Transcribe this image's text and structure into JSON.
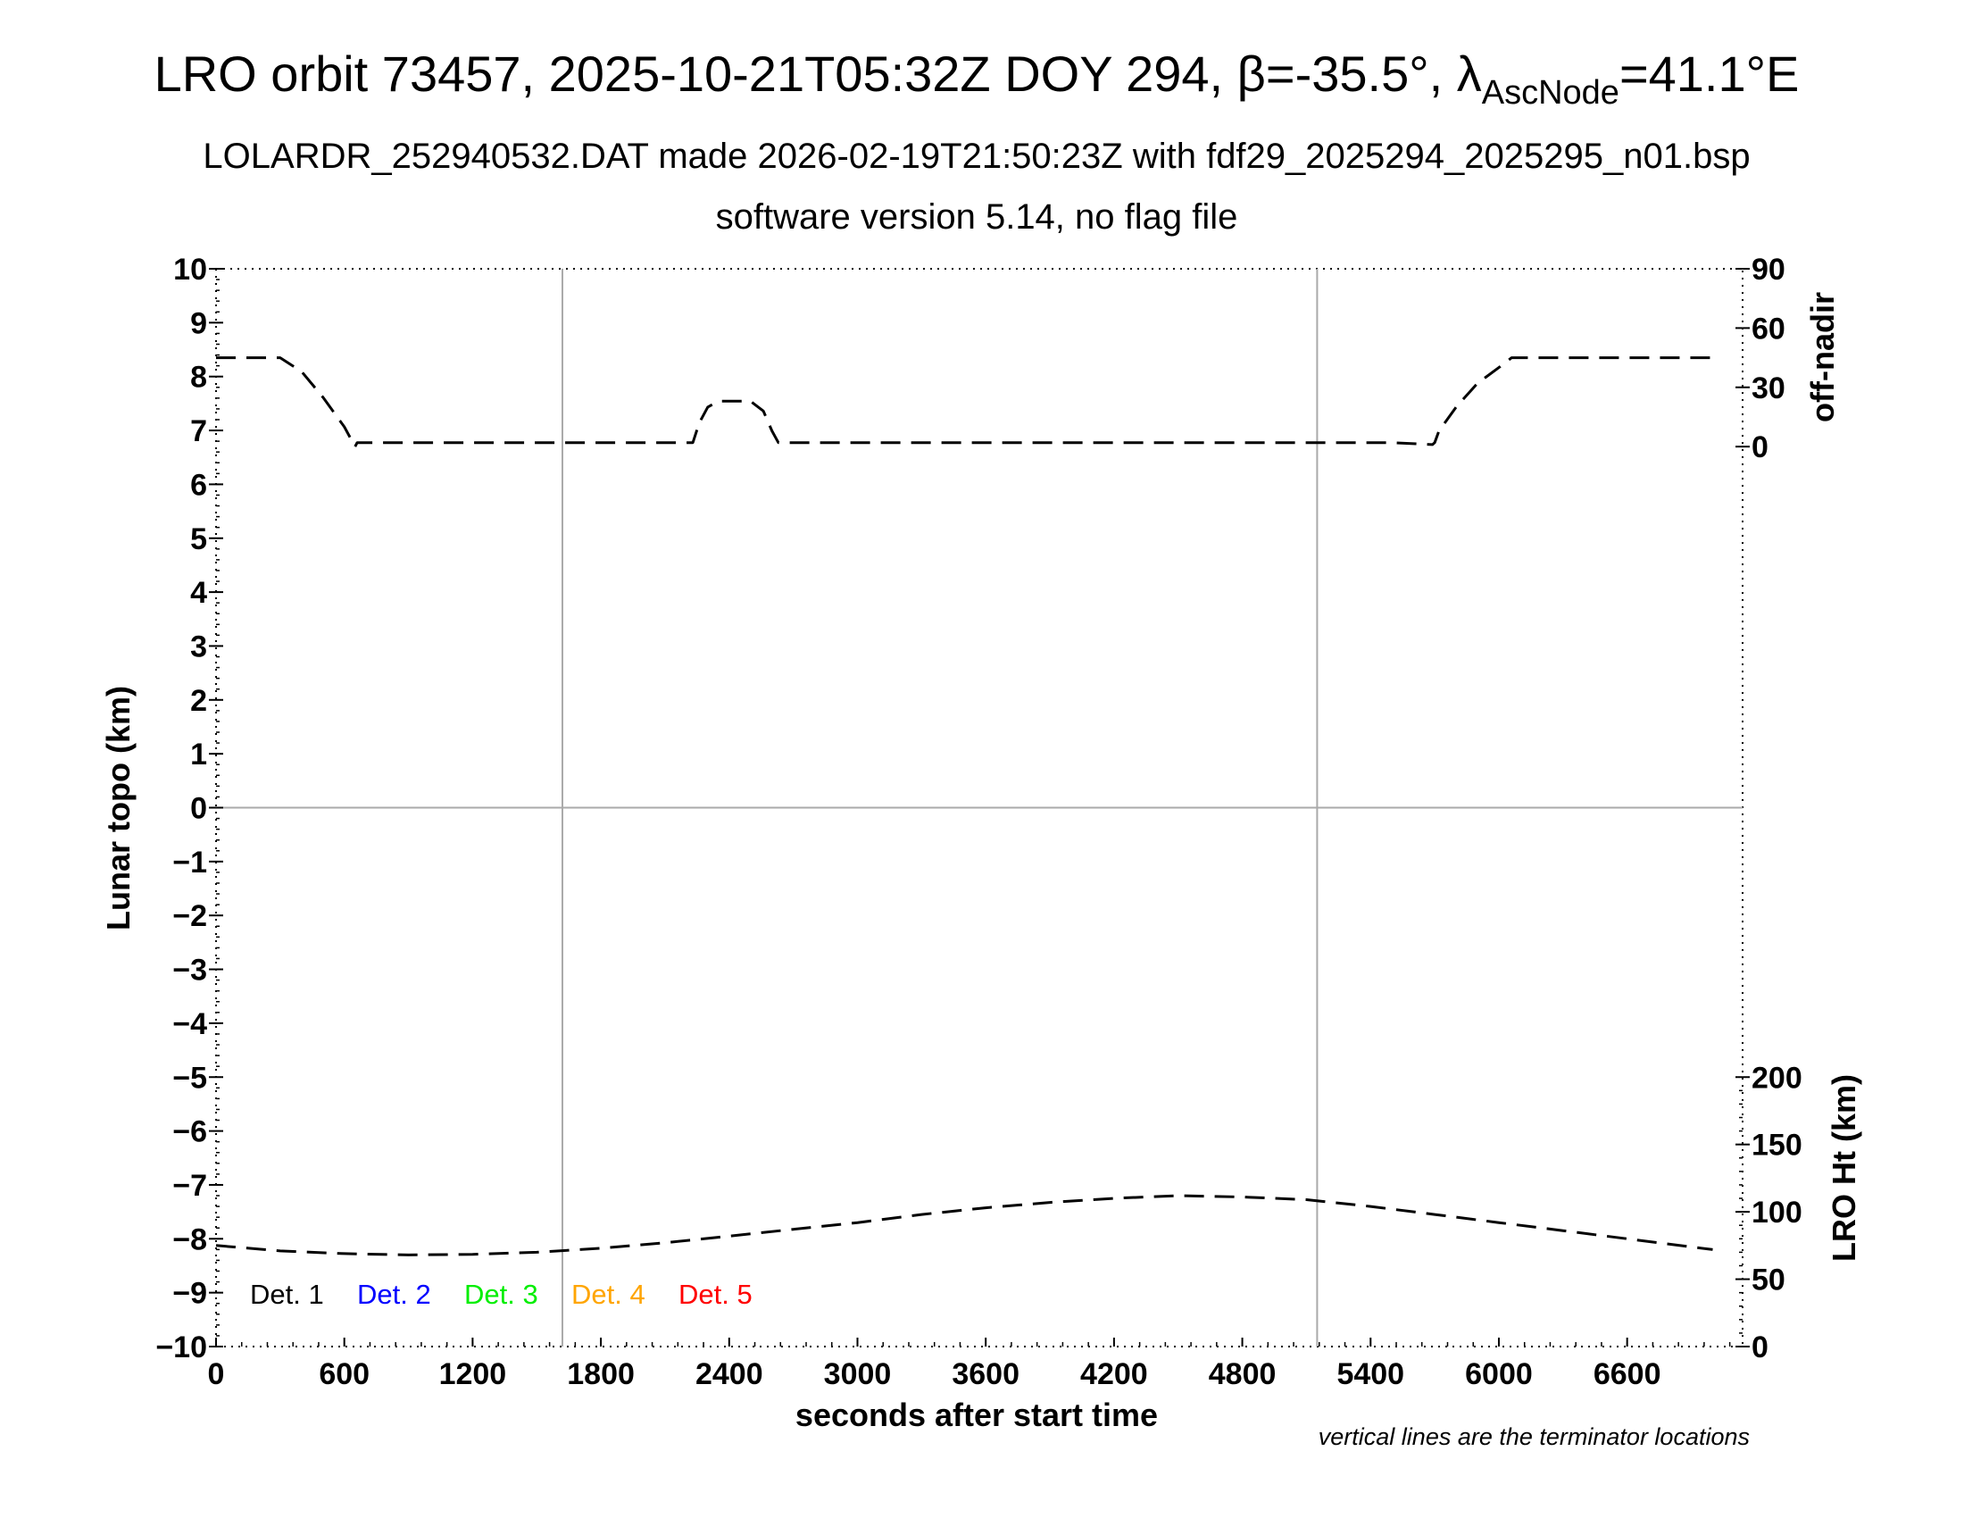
{
  "header": {
    "title_main": "LRO orbit 73457, 2025-10-21T05:32Z DOY 294, ",
    "title_beta": "β=-35.5°, ",
    "title_lambda": "λ",
    "title_sub": "AscNode",
    "title_end": "=41.1°E",
    "subtitle1": "LOLARDR_252940532.DAT made 2026-02-19T21:50:23Z with fdf29_2025294_2025295_n01.bsp",
    "subtitle2": "software version 5.14, no flag file"
  },
  "axes": {
    "xlabel": "seconds after start time",
    "ylabel_left": "Lunar topo (km)",
    "ylabel_right_top": "off-nadir",
    "ylabel_right_bottom": "LRO Ht (km)",
    "note": "vertical lines are the terminator locations"
  },
  "colors": {
    "det1": "#000000",
    "det2": "#0000ff",
    "det3": "#00ee00",
    "det4": "#ffa500",
    "det5": "#ff0000",
    "grid": "#aaaaaa"
  },
  "legend": [
    {
      "label": "Det. 1",
      "color": "#000000"
    },
    {
      "label": "Det. 2",
      "color": "#0000ff"
    },
    {
      "label": "Det. 3",
      "color": "#00ee00"
    },
    {
      "label": "Det. 4",
      "color": "#ffa500"
    },
    {
      "label": "Det. 5",
      "color": "#ff0000"
    }
  ],
  "chart_data": {
    "type": "line",
    "xlim": [
      0,
      7140
    ],
    "ylim_left": [
      -10,
      10
    ],
    "x_ticks": [
      0,
      600,
      1200,
      1800,
      2400,
      3000,
      3600,
      4200,
      4800,
      5400,
      6000,
      6600
    ],
    "y_ticks_left": [
      10,
      9,
      8,
      7,
      6,
      5,
      4,
      3,
      2,
      1,
      0,
      -1,
      -2,
      -3,
      -4,
      -5,
      -6,
      -7,
      -8,
      -9,
      -10
    ],
    "y_tick_labels_left": [
      "10",
      "9",
      "8",
      "7",
      "6",
      "5",
      "4",
      "3",
      "2",
      "1",
      "0",
      "−1",
      "−2",
      "−3",
      "−4",
      "−5",
      "−6",
      "−7",
      "−8",
      "−9",
      "−10"
    ],
    "right_top_axis": {
      "label": "off-nadir",
      "ticks": [
        90,
        60,
        30,
        0
      ]
    },
    "right_bottom_axis": {
      "label": "LRO Ht (km)",
      "range": [
        0,
        200
      ],
      "ticks": [
        200,
        150,
        100,
        50,
        0
      ]
    },
    "terminators_x": [
      1620,
      5150
    ],
    "grid": "terminator verticals and zero line",
    "series": [
      {
        "name": "off-nadir",
        "axis": "right_top",
        "style": "dashed",
        "x": [
          0,
          300,
          400,
          500,
          600,
          650,
          660,
          700,
          1000,
          2000,
          2230,
          2260,
          2300,
          2350,
          2500,
          2560,
          2600,
          2630,
          2700,
          3500,
          5500,
          5690,
          5700,
          5720,
          5800,
          5900,
          6000,
          6060,
          6200,
          7000
        ],
        "values": [
          45,
          45,
          38,
          25,
          10,
          0,
          2,
          2,
          2,
          2,
          2,
          12,
          20,
          23,
          23,
          18,
          8,
          2,
          2,
          2,
          2,
          1,
          2,
          8,
          20,
          32,
          40,
          45,
          45,
          45
        ]
      },
      {
        "name": "LRO Ht",
        "axis": "right_bottom",
        "style": "dashed",
        "x": [
          0,
          300,
          600,
          900,
          1200,
          1500,
          1800,
          2100,
          2400,
          2700,
          3000,
          3300,
          3600,
          3900,
          4200,
          4500,
          4800,
          5100,
          5400,
          5700,
          6000,
          6300,
          6600,
          6900,
          7000
        ],
        "values": [
          75,
          71,
          69,
          68,
          68.5,
          70,
          73,
          77,
          82,
          87,
          92,
          98,
          103,
          107,
          110,
          112,
          111,
          109,
          104,
          98,
          92,
          86,
          80,
          74,
          72
        ]
      }
    ]
  }
}
